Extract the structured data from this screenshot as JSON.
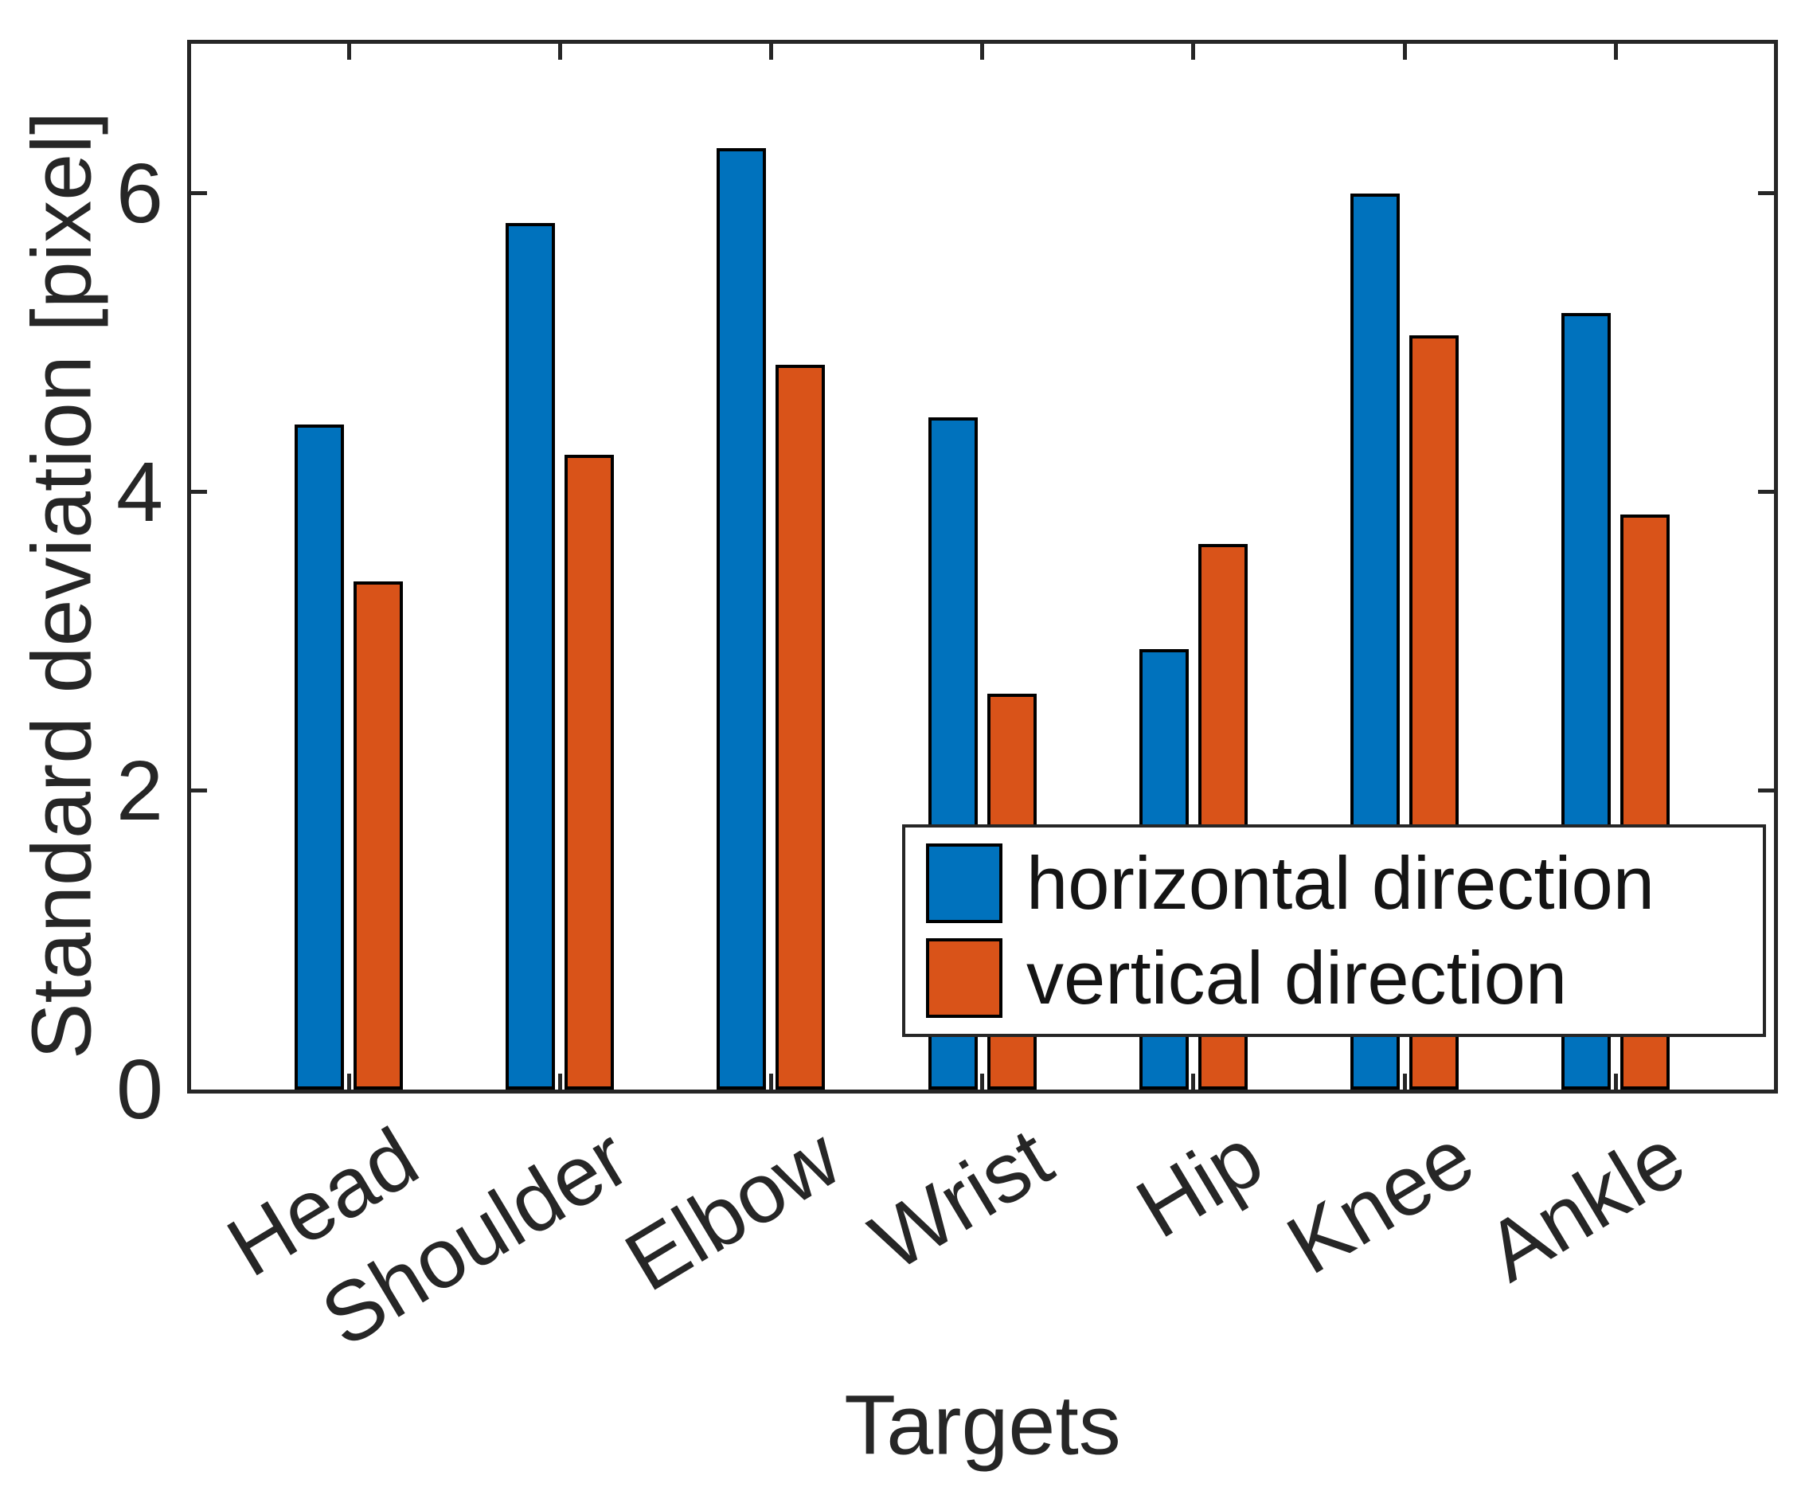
{
  "figure": {
    "background": "#ffffff",
    "axes_color": "#262626"
  },
  "chart_data": {
    "type": "bar",
    "title": "",
    "xlabel": "Targets",
    "ylabel": "Standard deviation [pixel]",
    "categories": [
      "Head",
      "Shoulder",
      "Elbow",
      "Wrist",
      "Hip",
      "Knee",
      "Ankle"
    ],
    "series": [
      {
        "name": "horizontal direction",
        "color": "#0072BD",
        "values": [
          4.45,
          5.8,
          6.3,
          4.5,
          2.95,
          6.0,
          5.2
        ]
      },
      {
        "name": "vertical direction",
        "color": "#D95319",
        "values": [
          3.4,
          4.25,
          4.85,
          2.65,
          3.65,
          5.05,
          3.85
        ]
      }
    ],
    "ylim": [
      0,
      7
    ],
    "yticks": [
      0,
      2,
      4,
      6
    ],
    "xtick_rotation_deg": 31,
    "grid": false,
    "legend_position": "lower-right-inside",
    "bar_edge_color": "#000000"
  }
}
